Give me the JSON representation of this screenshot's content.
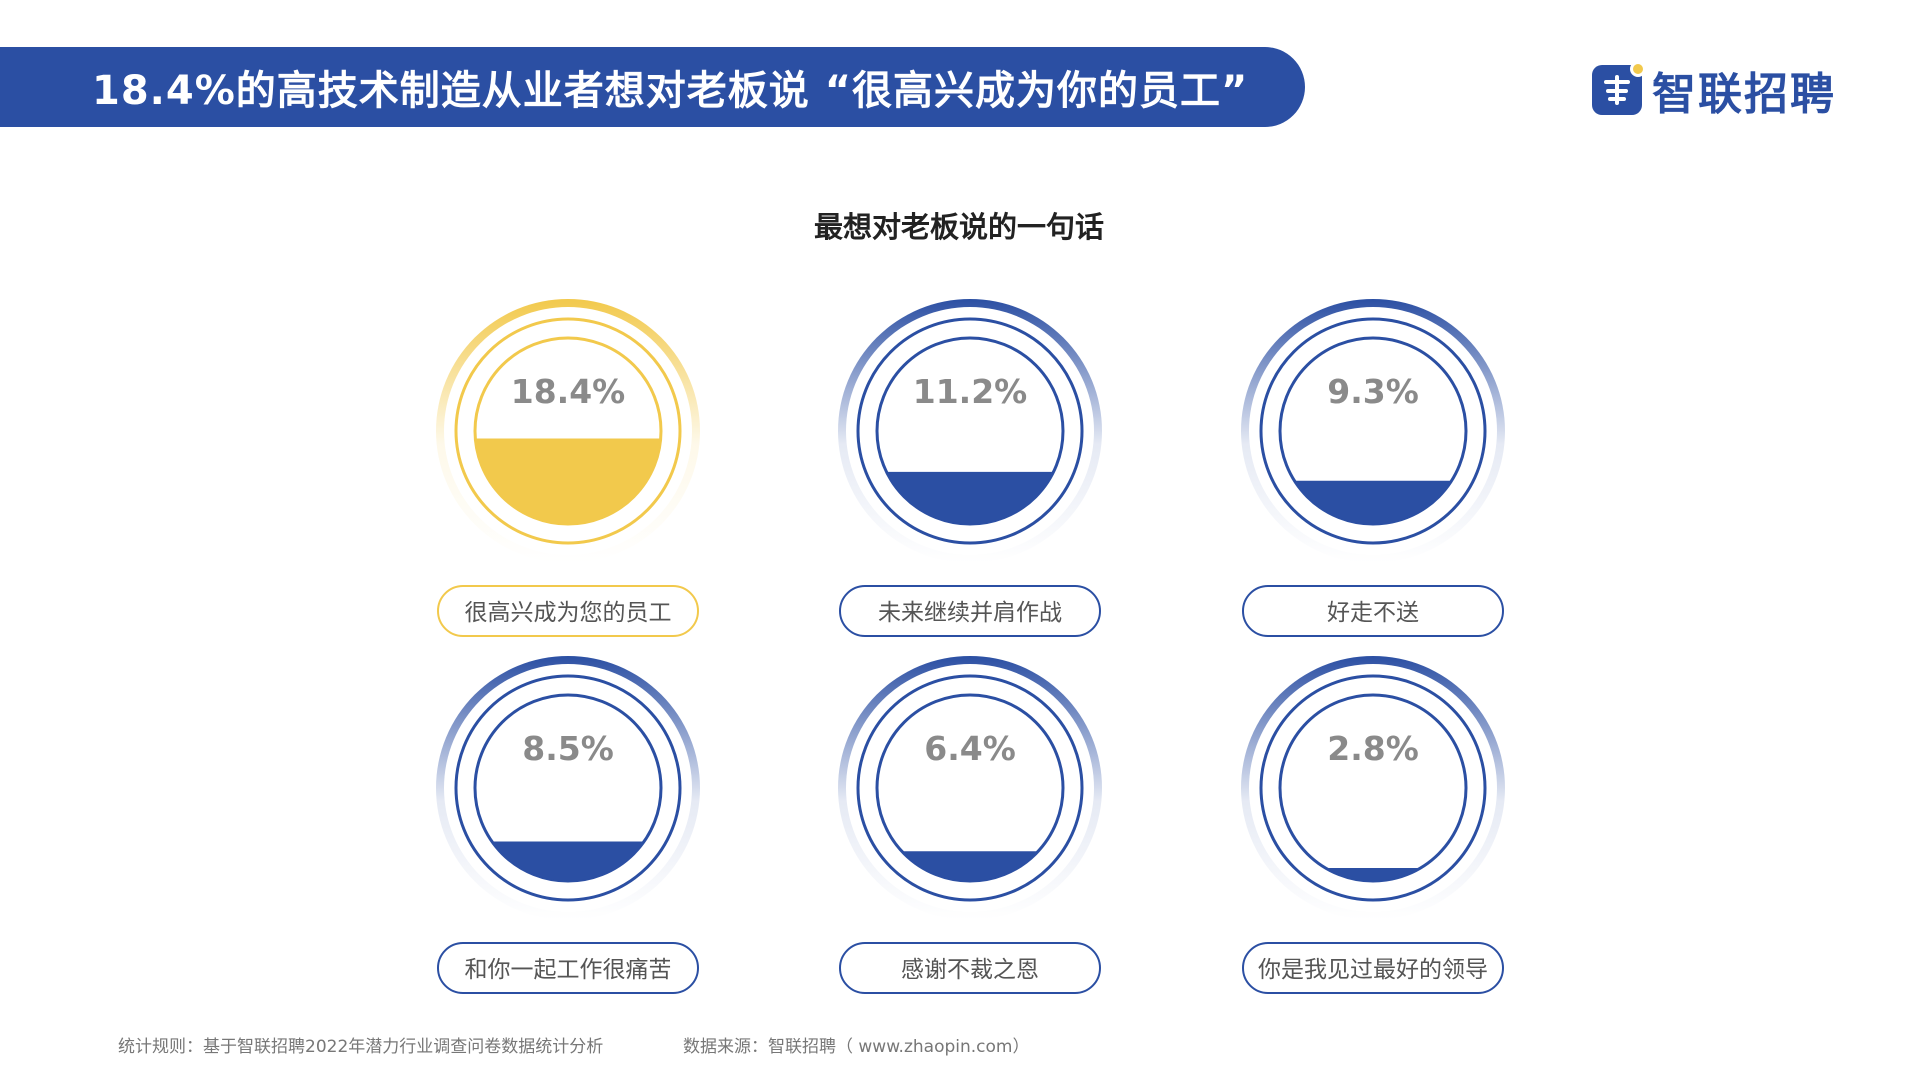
{
  "header": {
    "title": "18.4%的高技术制造从业者想对老板说 “很高兴成为你的员工”"
  },
  "logo": {
    "text": "智联招聘",
    "accent_color": "#2b4fa3",
    "dot_color": "#f2c94c"
  },
  "footer": {
    "rule": "统计规则：基于智联招聘2022年潜力行业调查问卷数据统计分析",
    "source": "数据来源：智联招聘（ www.zhaopin.com）"
  },
  "chart_data": {
    "type": "gauge",
    "title": "最想对老板说的一句话",
    "unit": "%",
    "highlight_color": "#f2c94c",
    "base_color": "#2b4fa3",
    "items": [
      {
        "label": "很高兴成为您的员工",
        "value": 18.4,
        "display": "18.4%",
        "highlight": true
      },
      {
        "label": "未来继续并肩作战",
        "value": 11.2,
        "display": "11.2%",
        "highlight": false
      },
      {
        "label": "好走不送",
        "value": 9.3,
        "display": "9.3%",
        "highlight": false
      },
      {
        "label": "和你一起工作很痛苦",
        "value": 8.5,
        "display": "8.5%",
        "highlight": false
      },
      {
        "label": "感谢不裁之恩",
        "value": 6.4,
        "display": "6.4%",
        "highlight": false
      },
      {
        "label": "你是我见过最好的领导",
        "value": 2.8,
        "display": "2.8%",
        "highlight": false
      }
    ]
  }
}
